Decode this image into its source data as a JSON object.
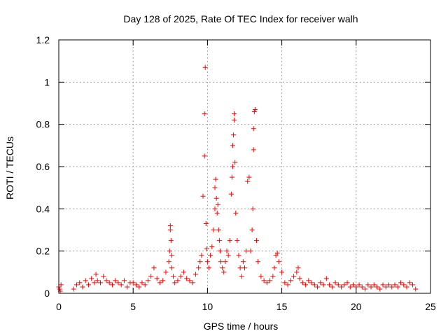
{
  "chart_data": {
    "type": "scatter",
    "title": "Day 128 of 2025, Rate Of TEC Index for receiver walh",
    "xlabel": "GPS time / hours",
    "ylabel": "ROTI / TECUs",
    "xlim": [
      0,
      25
    ],
    "ylim": [
      0,
      1.2
    ],
    "xticks": [
      0,
      5,
      10,
      15,
      20,
      25
    ],
    "yticks": [
      0,
      0.2,
      0.4,
      0.6,
      0.8,
      1,
      1.2
    ],
    "xtick_labels": [
      "0",
      "5",
      "10",
      "15",
      "20",
      "25"
    ],
    "ytick_labels": [
      "0",
      "0.2",
      "0.4",
      "0.6",
      "0.8",
      "1",
      "1.2"
    ],
    "grid": true,
    "marker": "+",
    "series": [
      {
        "name": "ROTI",
        "color": "#ff0000",
        "x": [
          0.0,
          0.05,
          0.1,
          0.15,
          1.0,
          1.2,
          1.4,
          1.6,
          1.8,
          2.0,
          2.2,
          2.4,
          2.5,
          2.6,
          2.8,
          3.0,
          3.2,
          3.4,
          3.6,
          3.8,
          4.0,
          4.2,
          4.4,
          4.6,
          4.8,
          5.0,
          5.2,
          5.4,
          5.6,
          5.8,
          6.0,
          6.2,
          6.4,
          6.6,
          6.8,
          7.0,
          7.2,
          7.4,
          7.45,
          7.5,
          7.5,
          7.55,
          7.6,
          7.6,
          7.7,
          7.8,
          8.0,
          8.2,
          8.4,
          8.6,
          8.8,
          9.0,
          9.2,
          9.4,
          9.5,
          9.6,
          9.7,
          9.8,
          9.8,
          9.85,
          9.9,
          9.95,
          10.0,
          10.1,
          10.2,
          10.3,
          10.4,
          10.5,
          10.5,
          10.55,
          10.6,
          10.65,
          10.7,
          10.75,
          10.8,
          10.85,
          10.9,
          11.0,
          11.1,
          11.2,
          11.3,
          11.4,
          11.5,
          11.6,
          11.65,
          11.7,
          11.7,
          11.75,
          11.8,
          11.8,
          11.85,
          11.9,
          12.0,
          12.1,
          12.2,
          12.3,
          12.4,
          12.5,
          12.6,
          12.7,
          12.8,
          12.9,
          13.0,
          13.05,
          13.1,
          13.1,
          13.15,
          13.2,
          13.3,
          13.4,
          13.6,
          13.8,
          14.0,
          14.2,
          14.4,
          14.5,
          14.6,
          14.7,
          14.8,
          15.0,
          15.2,
          15.4,
          15.6,
          15.8,
          16.0,
          16.1,
          16.2,
          16.4,
          16.6,
          16.8,
          17.0,
          17.2,
          17.4,
          17.6,
          17.8,
          18.0,
          18.2,
          18.4,
          18.6,
          18.8,
          19.0,
          19.2,
          19.4,
          19.6,
          19.8,
          20.0,
          20.2,
          20.4,
          20.6,
          20.8,
          21.0,
          21.2,
          21.4,
          21.6,
          21.8,
          22.0,
          22.2,
          22.4,
          22.6,
          22.8,
          23.0,
          23.2,
          23.4,
          23.6,
          23.8,
          24.0
        ],
        "y": [
          0.03,
          0.02,
          0.01,
          0.04,
          0.02,
          0.04,
          0.05,
          0.03,
          0.06,
          0.04,
          0.07,
          0.05,
          0.09,
          0.06,
          0.05,
          0.08,
          0.06,
          0.05,
          0.04,
          0.06,
          0.05,
          0.04,
          0.06,
          0.03,
          0.05,
          0.05,
          0.04,
          0.03,
          0.05,
          0.04,
          0.06,
          0.08,
          0.12,
          0.07,
          0.05,
          0.06,
          0.1,
          0.15,
          0.2,
          0.3,
          0.32,
          0.25,
          0.18,
          0.12,
          0.08,
          0.05,
          0.06,
          0.08,
          0.1,
          0.07,
          0.06,
          0.05,
          0.09,
          0.12,
          0.15,
          0.18,
          0.46,
          0.65,
          0.85,
          1.07,
          0.33,
          0.21,
          0.15,
          0.12,
          0.18,
          0.22,
          0.3,
          0.4,
          0.5,
          0.54,
          0.45,
          0.38,
          0.42,
          0.3,
          0.25,
          0.2,
          0.15,
          0.12,
          0.1,
          0.15,
          0.2,
          0.18,
          0.25,
          0.47,
          0.55,
          0.6,
          0.7,
          0.75,
          0.82,
          0.85,
          0.62,
          0.38,
          0.25,
          0.18,
          0.12,
          0.08,
          0.15,
          0.12,
          0.2,
          0.53,
          0.55,
          0.2,
          0.3,
          0.4,
          0.68,
          0.78,
          0.86,
          0.87,
          0.25,
          0.15,
          0.08,
          0.06,
          0.05,
          0.06,
          0.08,
          0.12,
          0.18,
          0.19,
          0.15,
          0.1,
          0.05,
          0.04,
          0.06,
          0.08,
          0.1,
          0.12,
          0.07,
          0.05,
          0.04,
          0.06,
          0.05,
          0.04,
          0.03,
          0.05,
          0.04,
          0.07,
          0.04,
          0.03,
          0.05,
          0.04,
          0.03,
          0.04,
          0.05,
          0.03,
          0.04,
          0.03,
          0.04,
          0.03,
          0.02,
          0.04,
          0.03,
          0.04,
          0.03,
          0.02,
          0.04,
          0.03,
          0.04,
          0.03,
          0.04,
          0.03,
          0.05,
          0.04,
          0.03,
          0.05,
          0.04,
          0.02
        ]
      }
    ]
  }
}
